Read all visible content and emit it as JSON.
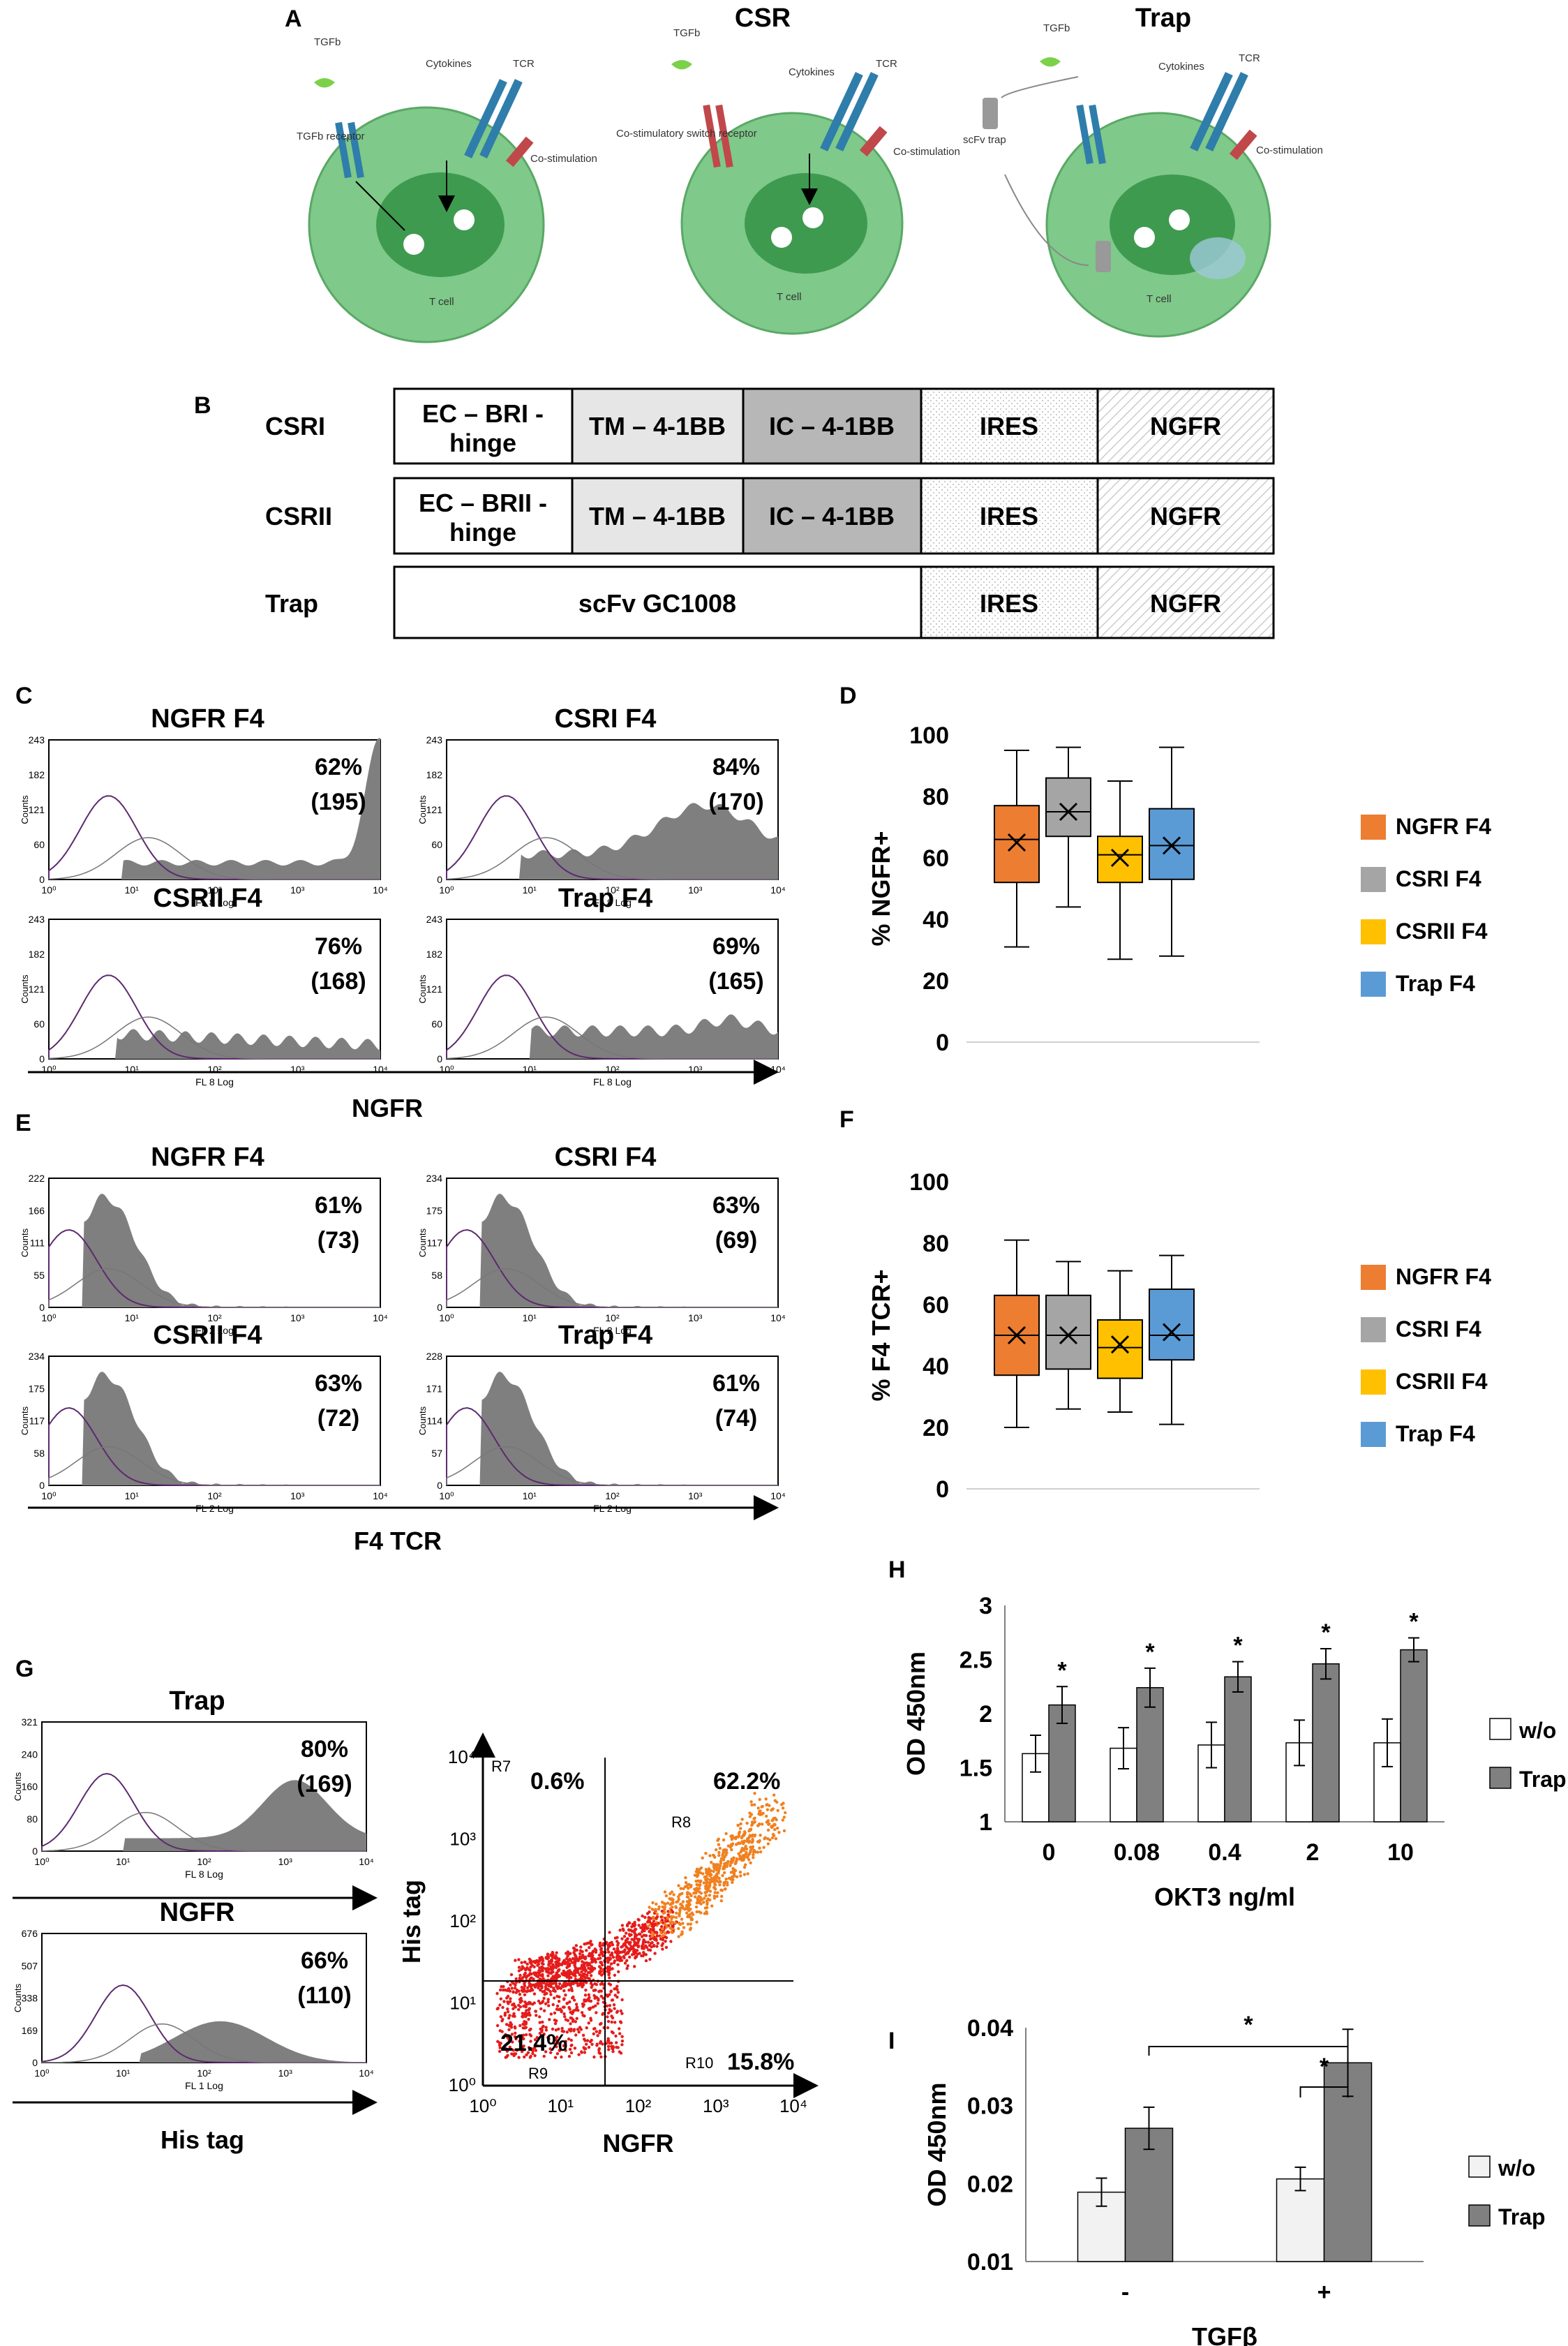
{
  "panel_a": {
    "letter": "A",
    "titles": [
      "CSR",
      "Trap"
    ],
    "labels": {
      "tgfb": "TGFb",
      "tgfb_receptor": "TGFb receptor",
      "cytokines": "Cytokines",
      "tcr": "TCR",
      "costim": "Co-stimulation",
      "csr_receptor": "Co-stimulatory switch receptor",
      "scfv_trap": "scFv trap",
      "tcell": "T cell"
    }
  },
  "panel_b": {
    "letter": "B",
    "rows": [
      {
        "name": "CSRI",
        "ec": "EC – BRI -",
        "ec2": "hinge",
        "tm": "TM – 4-1BB",
        "ic": "IC – 4-1BB",
        "ires": "IRES",
        "ngfr": "NGFR"
      },
      {
        "name": "CSRII",
        "ec": "EC – BRII -",
        "ec2": "hinge",
        "tm": "TM – 4-1BB",
        "ic": "IC – 4-1BB",
        "ires": "IRES",
        "ngfr": "NGFR"
      },
      {
        "name": "Trap",
        "scfv": "scFv GC1008",
        "ires": "IRES",
        "ngfr": "NGFR"
      }
    ]
  },
  "panel_c": {
    "letter": "C",
    "axis_label": "NGFR",
    "xaxis": "FL 8 Log",
    "yticks": [
      "243",
      "182",
      "121",
      "60",
      "0"
    ],
    "xticks": [
      "10⁰",
      "10¹",
      "10²",
      "10³",
      "10⁴"
    ],
    "plots": [
      {
        "title": "NGFR F4",
        "pct": "62%",
        "mfi": "(195)"
      },
      {
        "title": "CSRI F4",
        "pct": "84%",
        "mfi": "(170)"
      },
      {
        "title": "CSRII F4",
        "pct": "76%",
        "mfi": "(168)"
      },
      {
        "title": "Trap F4",
        "pct": "69%",
        "mfi": "(165)"
      }
    ]
  },
  "panel_e": {
    "letter": "E",
    "axis_label": "F4 TCR",
    "xaxis": "FL 2 Log",
    "plots": [
      {
        "title": "NGFR F4",
        "pct": "61%",
        "mfi": "(73)",
        "yticks": [
          "222",
          "166",
          "111",
          "55",
          "0"
        ]
      },
      {
        "title": "CSRI F4",
        "pct": "63%",
        "mfi": "(69)",
        "yticks": [
          "234",
          "175",
          "117",
          "58",
          "0"
        ]
      },
      {
        "title": "CSRII F4",
        "pct": "63%",
        "mfi": "(72)",
        "yticks": [
          "234",
          "175",
          "117",
          "58",
          "0"
        ]
      },
      {
        "title": "Trap F4",
        "pct": "61%",
        "mfi": "(74)",
        "yticks": [
          "228",
          "171",
          "114",
          "57",
          "0"
        ]
      }
    ]
  },
  "chart_data": [
    {
      "id": "D",
      "type": "box",
      "ylabel": "% NGFR+",
      "ylim": [
        0,
        100
      ],
      "yticks": [
        0,
        20,
        40,
        60,
        80,
        100
      ],
      "series": [
        {
          "name": "NGFR F4",
          "color": "#ED7D31",
          "min": 31,
          "q1": 52,
          "median": 66,
          "mean": 65,
          "q3": 77,
          "max": 95
        },
        {
          "name": "CSRI F4",
          "color": "#A5A5A5",
          "min": 44,
          "q1": 67,
          "median": 75,
          "mean": 75,
          "q3": 86,
          "max": 96
        },
        {
          "name": "CSRII F4",
          "color": "#FFC000",
          "min": 27,
          "q1": 52,
          "median": 61,
          "mean": 60,
          "q3": 67,
          "max": 85
        },
        {
          "name": "Trap F4",
          "color": "#5B9BD5",
          "min": 28,
          "q1": 53,
          "median": 64,
          "mean": 64,
          "q3": 76,
          "max": 96
        }
      ]
    },
    {
      "id": "F",
      "type": "box",
      "ylabel": "% F4 TCR+",
      "ylim": [
        0,
        100
      ],
      "yticks": [
        0,
        20,
        40,
        60,
        80,
        100
      ],
      "series": [
        {
          "name": "NGFR F4",
          "color": "#ED7D31",
          "min": 20,
          "q1": 37,
          "median": 50,
          "mean": 50,
          "q3": 63,
          "max": 81
        },
        {
          "name": "CSRI F4",
          "color": "#A5A5A5",
          "min": 26,
          "q1": 39,
          "median": 50,
          "mean": 50,
          "q3": 63,
          "max": 74
        },
        {
          "name": "CSRII F4",
          "color": "#FFC000",
          "min": 25,
          "q1": 36,
          "median": 46,
          "mean": 47,
          "q3": 55,
          "max": 71
        },
        {
          "name": "Trap F4",
          "color": "#5B9BD5",
          "min": 21,
          "q1": 42,
          "median": 50,
          "mean": 51,
          "q3": 65,
          "max": 76
        }
      ]
    },
    {
      "id": "H",
      "type": "bar",
      "ylabel": "OD 450nm",
      "xlabel": "OKT3 ng/ml",
      "ylim": [
        1,
        3
      ],
      "yticks": [
        "1",
        "1.5",
        "2",
        "2.5",
        "3"
      ],
      "ytick_values": [
        1,
        1.5,
        2,
        2.5,
        3
      ],
      "categories": [
        "0",
        "0.08",
        "0.4",
        "2",
        "10"
      ],
      "series": [
        {
          "name": "w/o",
          "color": "#FFFFFF",
          "values": [
            1.63,
            1.68,
            1.71,
            1.73,
            1.73
          ],
          "errors": [
            0.17,
            0.19,
            0.21,
            0.21,
            0.22
          ]
        },
        {
          "name": "Trap",
          "color": "#808080",
          "values": [
            2.08,
            2.24,
            2.34,
            2.46,
            2.59
          ],
          "errors": [
            0.17,
            0.18,
            0.14,
            0.14,
            0.11
          ]
        }
      ],
      "annotations": [
        "*",
        "*",
        "*",
        "*",
        "*"
      ]
    },
    {
      "id": "I",
      "type": "bar",
      "ylabel": "OD 450nm",
      "xlabel": "TGFβ",
      "ylim": [
        0.01,
        0.04
      ],
      "yticks": [
        "0.01",
        "0.02",
        "0.03",
        "0.04"
      ],
      "ytick_values": [
        0.01,
        0.02,
        0.03,
        0.04
      ],
      "categories": [
        "-",
        "+"
      ],
      "series": [
        {
          "name": "w/o",
          "color": "#F2F2F2",
          "values": [
            0.0189,
            0.0206
          ],
          "errors": [
            0.0018,
            0.0015
          ]
        },
        {
          "name": "Trap",
          "color": "#808080",
          "values": [
            0.0271,
            0.0355
          ],
          "errors": [
            0.0027,
            0.0043
          ]
        }
      ],
      "annotations": [
        "*",
        "*"
      ]
    }
  ],
  "panel_g": {
    "letter": "G",
    "hist": [
      {
        "title": "Trap",
        "pct": "80%",
        "mfi": "(169)",
        "xaxis": "FL 8 Log",
        "yticks": [
          "321",
          "240",
          "160",
          "80",
          "0"
        ],
        "axis_label": ""
      },
      {
        "title": "NGFR",
        "pct": "66%",
        "mfi": "(110)",
        "xaxis": "FL 1 Log",
        "yticks": [
          "676",
          "507",
          "338",
          "169",
          "0"
        ],
        "axis_label": "His tag"
      }
    ],
    "scatter": {
      "xlabel": "NGFR",
      "ylabel": "His tag",
      "quadrants": {
        "ul": "0.6%",
        "ur": "62.2%",
        "ll": "21.4%",
        "lr": "15.8%"
      },
      "regions": {
        "r7": "R7",
        "r8": "R8",
        "r9": "R9",
        "r10": "R10"
      },
      "xticks": [
        "10⁰",
        "10¹",
        "10²",
        "10³",
        "10⁴"
      ],
      "yticks": [
        "10⁰",
        "10¹",
        "10²",
        "10³",
        "10⁴"
      ]
    }
  },
  "letters": {
    "d": "D",
    "f": "F",
    "h": "H",
    "i": "I"
  }
}
